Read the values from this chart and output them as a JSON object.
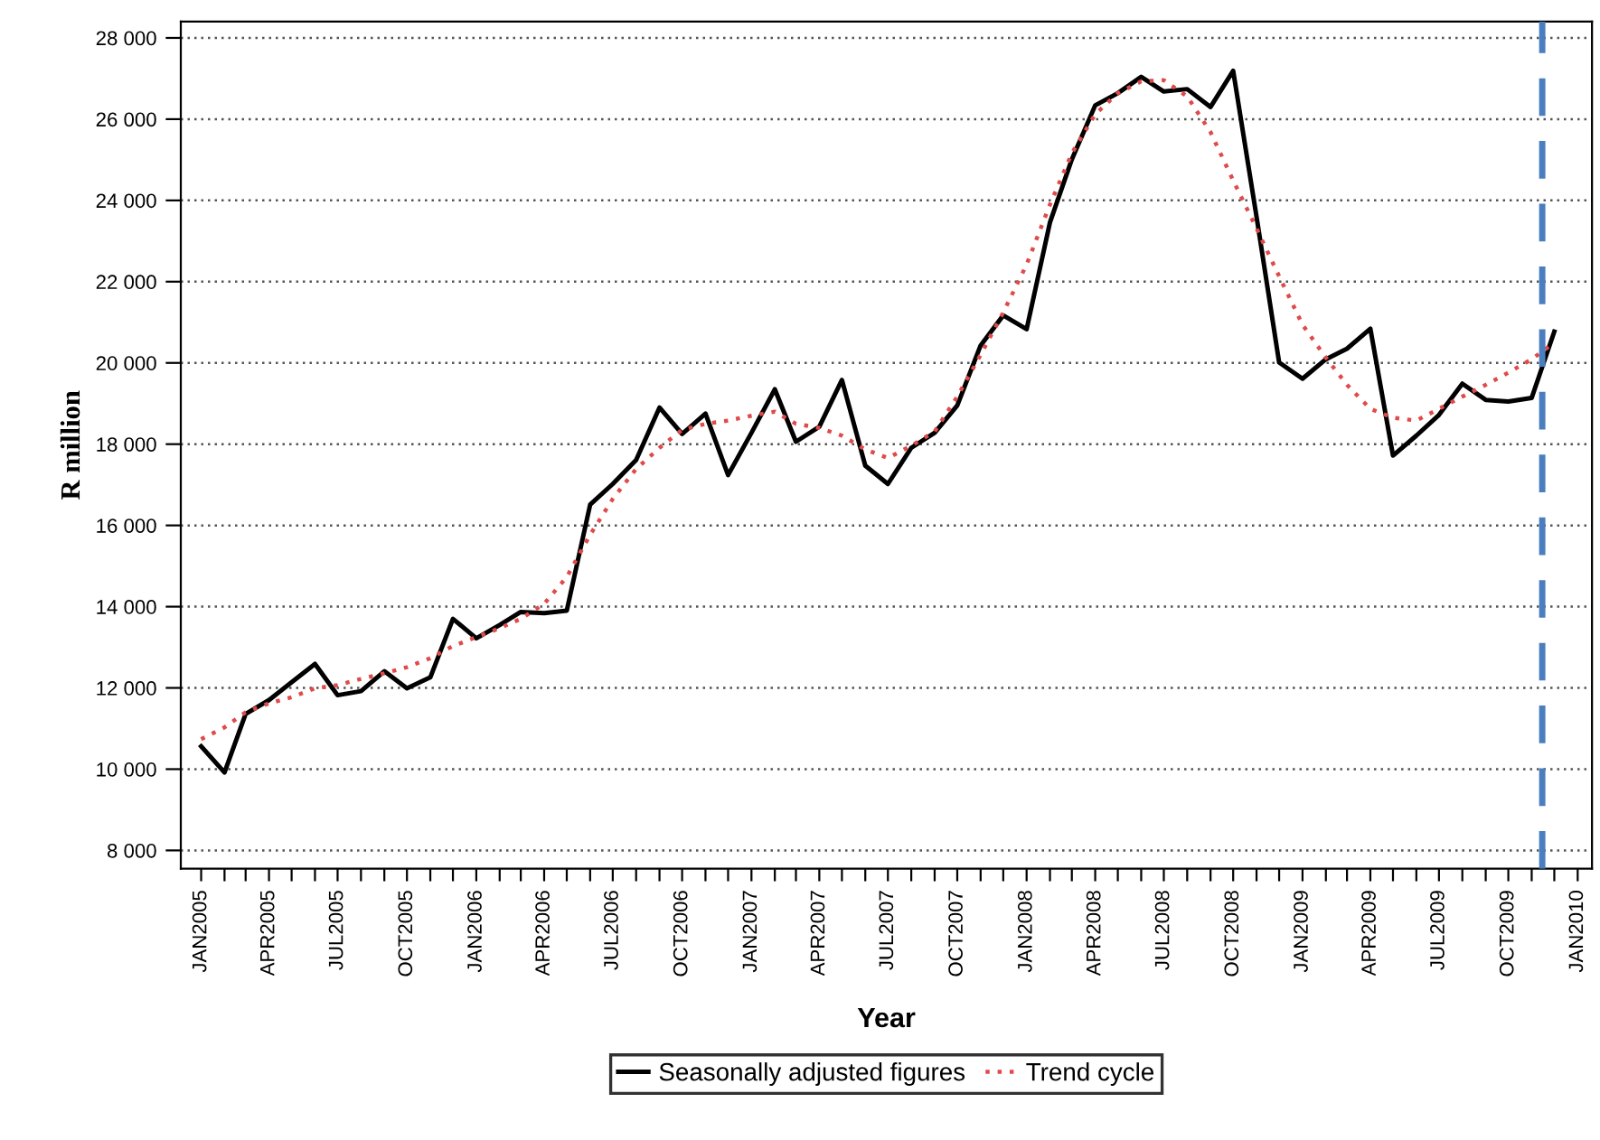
{
  "chart_data": {
    "type": "line",
    "xlabel": "Year",
    "ylabel": "R million",
    "x": [
      "2005-01",
      "2005-02",
      "2005-03",
      "2005-04",
      "2005-05",
      "2005-06",
      "2005-07",
      "2005-08",
      "2005-09",
      "2005-10",
      "2005-11",
      "2005-12",
      "2006-01",
      "2006-02",
      "2006-03",
      "2006-04",
      "2006-05",
      "2006-06",
      "2006-07",
      "2006-08",
      "2006-09",
      "2006-10",
      "2006-11",
      "2006-12",
      "2007-01",
      "2007-02",
      "2007-03",
      "2007-04",
      "2007-05",
      "2007-06",
      "2007-07",
      "2007-08",
      "2007-09",
      "2007-10",
      "2007-11",
      "2007-12",
      "2008-01",
      "2008-02",
      "2008-03",
      "2008-04",
      "2008-05",
      "2008-06",
      "2008-07",
      "2008-08",
      "2008-09",
      "2008-10",
      "2008-11",
      "2008-12",
      "2009-01",
      "2009-02",
      "2009-03",
      "2009-04",
      "2009-05",
      "2009-06",
      "2009-07",
      "2009-08",
      "2009-09",
      "2009-10",
      "2009-11",
      "2009-12"
    ],
    "series": [
      {
        "name": "Seasonally adjusted figures",
        "color": "#000000",
        "line_style": "solid",
        "values": [
          10560,
          9920,
          11360,
          11700,
          12140,
          12590,
          11820,
          11920,
          12410,
          11990,
          12260,
          13700,
          13220,
          13550,
          13870,
          13840,
          13900,
          16510,
          17020,
          17610,
          18900,
          18250,
          18750,
          17240,
          18280,
          19350,
          18060,
          18430,
          19580,
          17470,
          17020,
          17910,
          18280,
          18950,
          20430,
          21170,
          20830,
          23460,
          25010,
          26340,
          26640,
          27040,
          26680,
          26740,
          26300,
          27190,
          23600,
          20010,
          19610,
          20090,
          20350,
          20840,
          17720,
          18210,
          18720,
          19490,
          19090,
          19050,
          19140,
          20770
        ]
      },
      {
        "name": "Trend cycle",
        "color": "#e04a4a",
        "line_style": "dotted",
        "values": [
          10740,
          11030,
          11400,
          11620,
          11770,
          11990,
          12070,
          12220,
          12360,
          12510,
          12730,
          13030,
          13250,
          13470,
          13700,
          14070,
          14730,
          15770,
          16650,
          17390,
          17910,
          18350,
          18500,
          18580,
          18700,
          18800,
          18500,
          18400,
          18210,
          17870,
          17660,
          17960,
          18310,
          19170,
          20200,
          21240,
          22420,
          23900,
          25160,
          26120,
          26640,
          26930,
          26960,
          26560,
          25680,
          24490,
          23310,
          22130,
          20940,
          20130,
          19460,
          18870,
          18650,
          18580,
          18870,
          19170,
          19460,
          19760,
          20090,
          20500
        ]
      }
    ],
    "xlim": [
      "2004-12-05",
      "2010-01-20"
    ],
    "xticks": [
      {
        "value": "2005-01",
        "label": "JAN2005"
      },
      {
        "value": "2005-02",
        "label": null
      },
      {
        "value": "2005-03",
        "label": null
      },
      {
        "value": "2005-04",
        "label": "APR2005"
      },
      {
        "value": "2005-05",
        "label": null
      },
      {
        "value": "2005-06",
        "label": null
      },
      {
        "value": "2005-07",
        "label": "JUL2005"
      },
      {
        "value": "2005-08",
        "label": null
      },
      {
        "value": "2005-09",
        "label": null
      },
      {
        "value": "2005-10",
        "label": "OCT2005"
      },
      {
        "value": "2005-11",
        "label": null
      },
      {
        "value": "2005-12",
        "label": null
      },
      {
        "value": "2006-01",
        "label": "JAN2006"
      },
      {
        "value": "2006-02",
        "label": null
      },
      {
        "value": "2006-03",
        "label": null
      },
      {
        "value": "2006-04",
        "label": "APR2006"
      },
      {
        "value": "2006-05",
        "label": null
      },
      {
        "value": "2006-06",
        "label": null
      },
      {
        "value": "2006-07",
        "label": "JUL2006"
      },
      {
        "value": "2006-08",
        "label": null
      },
      {
        "value": "2006-09",
        "label": null
      },
      {
        "value": "2006-10",
        "label": "OCT2006"
      },
      {
        "value": "2006-11",
        "label": null
      },
      {
        "value": "2006-12",
        "label": null
      },
      {
        "value": "2007-01",
        "label": "JAN2007"
      },
      {
        "value": "2007-02",
        "label": null
      },
      {
        "value": "2007-03",
        "label": null
      },
      {
        "value": "2007-04",
        "label": "APR2007"
      },
      {
        "value": "2007-05",
        "label": null
      },
      {
        "value": "2007-06",
        "label": null
      },
      {
        "value": "2007-07",
        "label": "JUL2007"
      },
      {
        "value": "2007-08",
        "label": null
      },
      {
        "value": "2007-09",
        "label": null
      },
      {
        "value": "2007-10",
        "label": "OCT2007"
      },
      {
        "value": "2007-11",
        "label": null
      },
      {
        "value": "2007-12",
        "label": null
      },
      {
        "value": "2008-01",
        "label": "JAN2008"
      },
      {
        "value": "2008-02",
        "label": null
      },
      {
        "value": "2008-03",
        "label": null
      },
      {
        "value": "2008-04",
        "label": "APR2008"
      },
      {
        "value": "2008-05",
        "label": null
      },
      {
        "value": "2008-06",
        "label": null
      },
      {
        "value": "2008-07",
        "label": "JUL2008"
      },
      {
        "value": "2008-08",
        "label": null
      },
      {
        "value": "2008-09",
        "label": null
      },
      {
        "value": "2008-10",
        "label": "OCT2008"
      },
      {
        "value": "2008-11",
        "label": null
      },
      {
        "value": "2008-12",
        "label": null
      },
      {
        "value": "2009-01",
        "label": "JAN2009"
      },
      {
        "value": "2009-02",
        "label": null
      },
      {
        "value": "2009-03",
        "label": null
      },
      {
        "value": "2009-04",
        "label": "APR2009"
      },
      {
        "value": "2009-05",
        "label": null
      },
      {
        "value": "2009-06",
        "label": null
      },
      {
        "value": "2009-07",
        "label": "JUL2009"
      },
      {
        "value": "2009-08",
        "label": null
      },
      {
        "value": "2009-09",
        "label": null
      },
      {
        "value": "2009-10",
        "label": "OCT2009"
      },
      {
        "value": "2009-11",
        "label": null
      },
      {
        "value": "2009-12",
        "label": null
      },
      {
        "value": "2010-01",
        "label": "JAN2010"
      }
    ],
    "ylim": [
      7550,
      28400
    ],
    "yticks": [
      {
        "value": 8000,
        "label": "8 000"
      },
      {
        "value": 10000,
        "label": "10 000"
      },
      {
        "value": 12000,
        "label": "12 000"
      },
      {
        "value": 14000,
        "label": "14 000"
      },
      {
        "value": 16000,
        "label": "16 000"
      },
      {
        "value": 18000,
        "label": "18 000"
      },
      {
        "value": 20000,
        "label": "20 000"
      },
      {
        "value": 22000,
        "label": "22 000"
      },
      {
        "value": 24000,
        "label": "24 000"
      },
      {
        "value": 26000,
        "label": "26 000"
      },
      {
        "value": 28000,
        "label": "28 000"
      }
    ],
    "ref_lines": [
      {
        "axis": "x",
        "value": "2009-11-15",
        "label": null,
        "color": "#4a7ebf",
        "line_style": "dashed"
      }
    ],
    "grid": "y",
    "legend": "bottom",
    "marker": "none"
  }
}
